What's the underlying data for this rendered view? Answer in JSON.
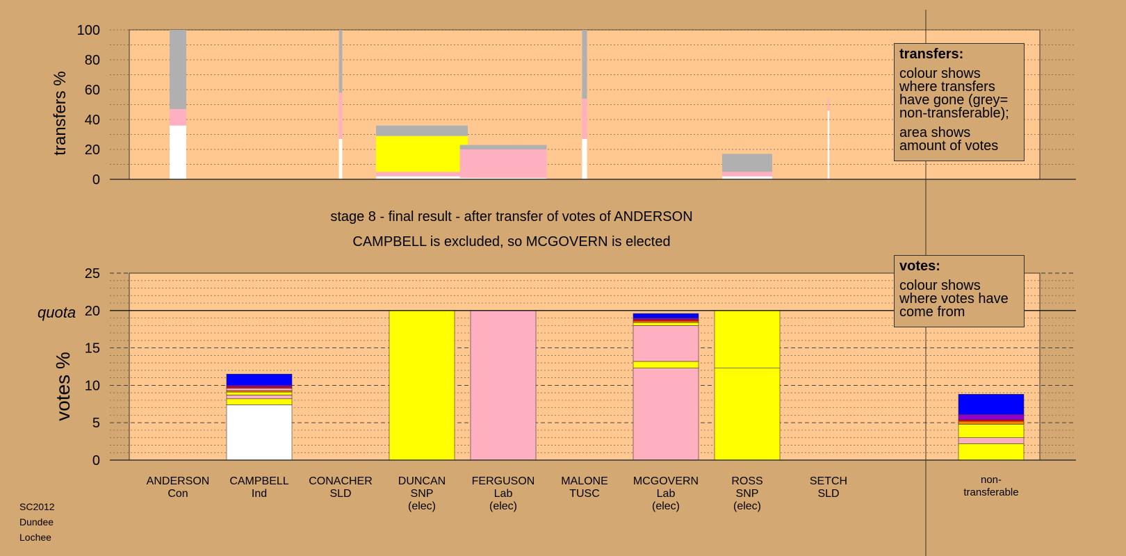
{
  "chart_data": {
    "type": "bar",
    "title_line1": "stage 8 - final result - after transfer of votes of ANDERSON",
    "title_line2": "CAMPBELL is excluded, so MCGOVERN is elected",
    "colors": {
      "white": "#ffffff",
      "pink": "#ffb0c0",
      "yellow": "#ffff00",
      "grey": "#b0b0b0",
      "blue": "#0000ff",
      "purple": "#9000d0",
      "red": "#ff0000",
      "orange": "#ff8000",
      "bg": "#d4a872",
      "panel": "#ffc890"
    },
    "candidates": [
      {
        "name": "ANDERSON",
        "party": "Con",
        "status": ""
      },
      {
        "name": "CAMPBELL",
        "party": "Ind",
        "status": ""
      },
      {
        "name": "CONACHER",
        "party": "SLD",
        "status": ""
      },
      {
        "name": "DUNCAN",
        "party": "SNP",
        "status": "(elec)"
      },
      {
        "name": "FERGUSON",
        "party": "Lab",
        "status": "(elec)"
      },
      {
        "name": "MALONE",
        "party": "TUSC",
        "status": ""
      },
      {
        "name": "MCGOVERN",
        "party": "Lab",
        "status": "(elec)"
      },
      {
        "name": "ROSS",
        "party": "SNP",
        "status": "(elec)"
      },
      {
        "name": "SETCH",
        "party": "SLD",
        "status": ""
      }
    ],
    "nontransferable_label": [
      "non-",
      "transferable"
    ],
    "transfers": {
      "ylabel": "transfers %",
      "ylim": [
        0,
        100
      ],
      "yticks": [
        0,
        20,
        40,
        60,
        80,
        100
      ],
      "columns": [
        {
          "candidate": "ANDERSON",
          "share": 0.1,
          "segments": [
            {
              "c": "white",
              "v": 36
            },
            {
              "c": "pink",
              "v": 11
            },
            {
              "c": "grey",
              "v": 53
            }
          ]
        },
        {
          "candidate": "CONACHER",
          "share": 0.02,
          "segments": [
            {
              "c": "white",
              "v": 27
            },
            {
              "c": "pink",
              "v": 31
            },
            {
              "c": "grey",
              "v": 42
            }
          ]
        },
        {
          "candidate": "DUNCAN",
          "share": 0.55,
          "segments": [
            {
              "c": "white",
              "v": 2
            },
            {
              "c": "pink",
              "v": 3
            },
            {
              "c": "yellow",
              "v": 24
            },
            {
              "c": "grey",
              "v": 7
            }
          ]
        },
        {
          "candidate": "FERGUSON",
          "share": 0.52,
          "segments": [
            {
              "c": "white",
              "v": 1
            },
            {
              "c": "pink",
              "v": 19
            },
            {
              "c": "grey",
              "v": 3
            }
          ]
        },
        {
          "candidate": "MALONE",
          "share": 0.03,
          "segments": [
            {
              "c": "white",
              "v": 27
            },
            {
              "c": "pink",
              "v": 27
            },
            {
              "c": "grey",
              "v": 46
            }
          ]
        },
        {
          "candidate": "ROSS",
          "share": 0.3,
          "segments": [
            {
              "c": "white",
              "v": 2
            },
            {
              "c": "pink",
              "v": 3
            },
            {
              "c": "grey",
              "v": 12
            }
          ]
        },
        {
          "candidate": "SETCH",
          "share": 0.01,
          "segments": [
            {
              "c": "white",
              "v": 46
            },
            {
              "c": "pink",
              "v": 8
            }
          ]
        }
      ]
    },
    "votes": {
      "ylabel": "votes %",
      "quota_label": "quota",
      "quota": 20,
      "ylim": [
        0,
        25
      ],
      "yticks": [
        0,
        5,
        10,
        15,
        20,
        25
      ],
      "bars": [
        {
          "candidate": "ANDERSON",
          "segments": []
        },
        {
          "candidate": "CAMPBELL",
          "segments": [
            {
              "c": "white",
              "v": 7.4
            },
            {
              "c": "yellow",
              "v": 0.8
            },
            {
              "c": "pink",
              "v": 0.5
            },
            {
              "c": "yellow",
              "v": 0.4
            },
            {
              "c": "orange",
              "v": 0.2
            },
            {
              "c": "pink",
              "v": 0.3
            },
            {
              "c": "red",
              "v": 0.2
            },
            {
              "c": "purple",
              "v": 0.2
            },
            {
              "c": "blue",
              "v": 1.5
            }
          ]
        },
        {
          "candidate": "CONACHER",
          "segments": []
        },
        {
          "candidate": "DUNCAN",
          "segments": [
            {
              "c": "yellow",
              "v": 20
            }
          ]
        },
        {
          "candidate": "FERGUSON",
          "segments": [
            {
              "c": "pink",
              "v": 20
            }
          ]
        },
        {
          "candidate": "MALONE",
          "segments": []
        },
        {
          "candidate": "MCGOVERN",
          "segments": [
            {
              "c": "pink",
              "v": 12.3
            },
            {
              "c": "yellow",
              "v": 0.9
            },
            {
              "c": "pink",
              "v": 4.8
            },
            {
              "c": "yellow",
              "v": 0.4
            },
            {
              "c": "orange",
              "v": 0.2
            },
            {
              "c": "red",
              "v": 0.2
            },
            {
              "c": "purple",
              "v": 0.2
            },
            {
              "c": "blue",
              "v": 0.6
            }
          ]
        },
        {
          "candidate": "ROSS",
          "segments": [
            {
              "c": "yellow",
              "v": 12.3
            },
            {
              "c": "yellow",
              "v": 7.7
            }
          ]
        },
        {
          "candidate": "SETCH",
          "segments": []
        },
        {
          "candidate": "non-transferable",
          "segments": [
            {
              "c": "yellow",
              "v": 2.2
            },
            {
              "c": "pink",
              "v": 0.8
            },
            {
              "c": "yellow",
              "v": 1.8
            },
            {
              "c": "orange",
              "v": 0.4
            },
            {
              "c": "red",
              "v": 0.2
            },
            {
              "c": "purple",
              "v": 0.7
            },
            {
              "c": "blue",
              "v": 2.7
            }
          ]
        }
      ]
    }
  },
  "legend_transfers": {
    "title": "transfers:",
    "text1": "colour shows where transfers have gone (grey= non-transferable);",
    "text2": "area shows amount of votes"
  },
  "legend_votes": {
    "title": "votes:",
    "text1": "colour shows where votes have come from"
  },
  "footnote": {
    "line1": "SC2012",
    "line2": "Dundee",
    "line3": "Lochee"
  }
}
